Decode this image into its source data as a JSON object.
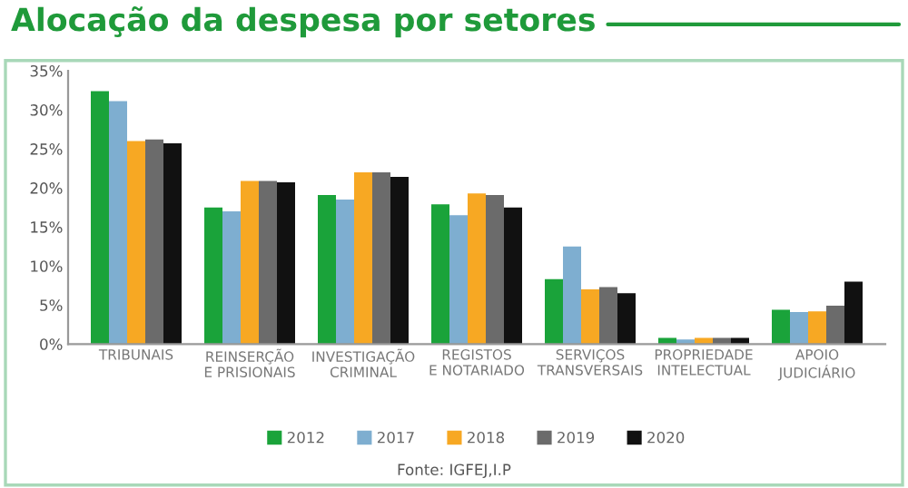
{
  "chart_data": {
    "type": "bar",
    "title": "Alocação da despesa por setores",
    "categories": [
      "TRIBUNAIS",
      "REINSERÇÃO\nE PRISIONAIS",
      "INVESTIGAÇÃO\nCRIMINAL",
      "REGISTOS\nE NOTARIADO",
      "SERVIÇOS\nTRANSVERSAIS",
      "PROPRIEDADE\nINTELECTUAL",
      "APOIO\nJUDICIÁRIO"
    ],
    "series": [
      {
        "name": "2012",
        "color": "#1aa33a",
        "values": [
          32.4,
          17.5,
          19.1,
          17.9,
          8.3,
          0.8,
          4.4
        ]
      },
      {
        "name": "2017",
        "color": "#7eaed0",
        "values": [
          31.1,
          17.0,
          18.5,
          16.5,
          12.5,
          0.6,
          4.1
        ]
      },
      {
        "name": "2018",
        "color": "#f7a823",
        "values": [
          26.0,
          20.9,
          22.0,
          19.3,
          7.0,
          0.8,
          4.2
        ]
      },
      {
        "name": "2019",
        "color": "#6b6b6b",
        "values": [
          26.2,
          20.9,
          22.0,
          19.1,
          7.3,
          0.8,
          4.9
        ]
      },
      {
        "name": "2020",
        "color": "#111111",
        "values": [
          25.7,
          20.7,
          21.4,
          17.5,
          6.5,
          0.8,
          8.0
        ]
      }
    ],
    "ylim": [
      0,
      35
    ],
    "yticks": [
      {
        "value": 0,
        "label": "0%"
      },
      {
        "value": 5,
        "label": "5%"
      },
      {
        "value": 10,
        "label": "10%"
      },
      {
        "value": 15,
        "label": "15%"
      },
      {
        "value": 20,
        "label": "20%"
      },
      {
        "value": 25,
        "label": "25%"
      },
      {
        "value": 30,
        "label": "30%"
      },
      {
        "value": 35,
        "label": "35%"
      }
    ],
    "grid": false,
    "legend": "bottom",
    "annotations": [
      "Fonte: IGFEJ,I.P"
    ]
  }
}
